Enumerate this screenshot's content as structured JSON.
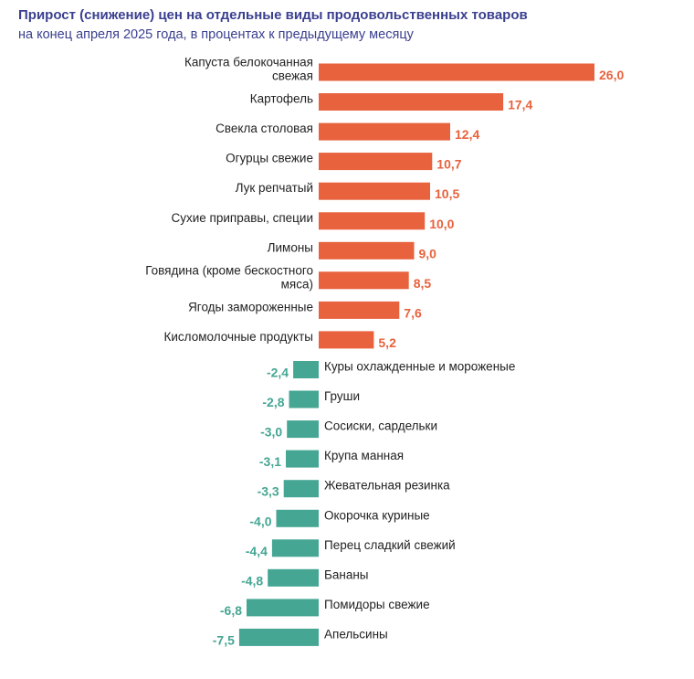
{
  "chart_data": {
    "type": "bar",
    "orientation": "horizontal",
    "title": "Прирост (снижение) цен на отдельные виды продовольственных товаров",
    "subtitle": "на конец апреля 2025 года, в процентах к предыдущему месяцу",
    "xlabel": "",
    "ylabel": "",
    "xlim": [
      -7.5,
      26.0
    ],
    "grid": false,
    "legend": "none",
    "colors": {
      "positive": "#e8623d",
      "negative": "#45a693",
      "positive_text": "#e8623d",
      "negative_text": "#45a693",
      "title": "#3a3f8f"
    },
    "categories": [
      [
        "Капуста белокочанная",
        "свежая"
      ],
      [
        "Картофель"
      ],
      [
        "Свекла столовая"
      ],
      [
        "Огурцы свежие"
      ],
      [
        "Лук репчатый"
      ],
      [
        "Сухие приправы, специи"
      ],
      [
        "Лимоны"
      ],
      [
        "Говядина (кроме бескостного",
        "мяса)"
      ],
      [
        "Ягоды замороженные"
      ],
      [
        "Кисломолочные продукты"
      ],
      [
        "Куры охлажденные и мороженые"
      ],
      [
        "Груши"
      ],
      [
        "Сосиски, сардельки"
      ],
      [
        "Крупа манная"
      ],
      [
        "Жевательная резинка"
      ],
      [
        "Окорочка куриные"
      ],
      [
        "Перец сладкий свежий"
      ],
      [
        "Бананы"
      ],
      [
        "Помидоры свежие"
      ],
      [
        "Апельсины"
      ]
    ],
    "values": [
      26.0,
      17.4,
      12.4,
      10.7,
      10.5,
      10.0,
      9.0,
      8.5,
      7.6,
      5.2,
      -2.4,
      -2.8,
      -3.0,
      -3.1,
      -3.3,
      -4.0,
      -4.4,
      -4.8,
      -6.8,
      -7.5
    ],
    "value_labels": [
      "26,0",
      "17,4",
      "12,4",
      "10,7",
      "10,5",
      "10,0",
      "9,0",
      "8,5",
      "7,6",
      "5,2",
      "-2,4",
      "-2,8",
      "-3,0",
      "-3,1",
      "-3,3",
      "-4,0",
      "-4,4",
      "-4,8",
      "-6,8",
      "-7,5"
    ]
  }
}
